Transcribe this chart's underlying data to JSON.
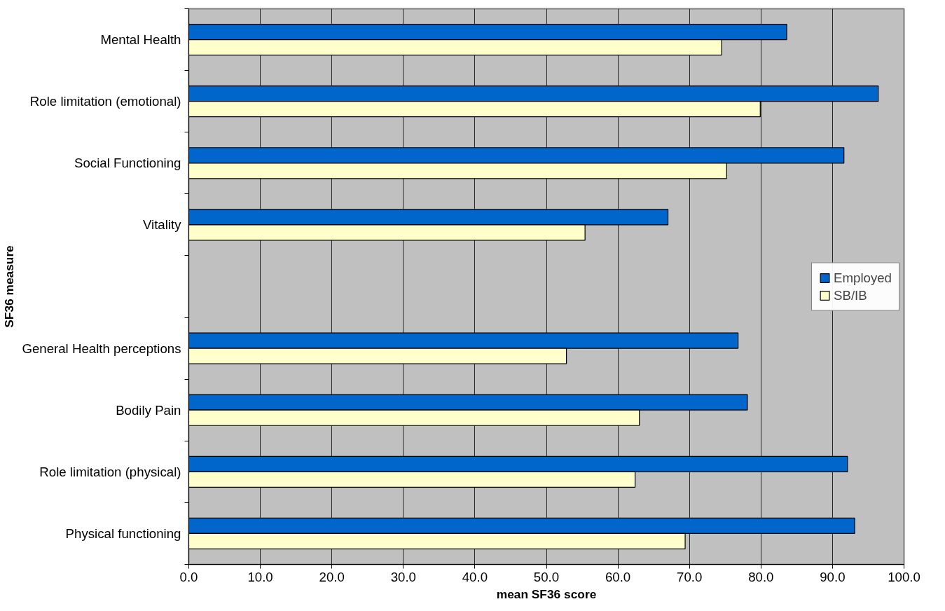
{
  "chart_data": {
    "type": "bar",
    "orientation": "horizontal",
    "xlabel": "mean SF36 score",
    "ylabel": "SF36 measure",
    "categories": [
      "Mental Health",
      "Role limitation (emotional)",
      "Social Functioning",
      "Vitality",
      null,
      "General Health perceptions",
      "Bodily Pain",
      "Role limitation (physical)",
      "Physical functioning"
    ],
    "series": [
      {
        "name": "Employed",
        "color": "#0066cc",
        "values": [
          83.6,
          96.4,
          91.6,
          67.0,
          null,
          76.8,
          78.1,
          92.1,
          93.1
        ]
      },
      {
        "name": "SB/IB",
        "color": "#ffffcc",
        "values": [
          74.5,
          79.9,
          75.2,
          55.4,
          null,
          52.8,
          63.0,
          62.4,
          69.4
        ]
      }
    ],
    "xlim": [
      0,
      100
    ],
    "xticks": [
      {
        "value": 0,
        "label": "0.0"
      },
      {
        "value": 10,
        "label": "10.0"
      },
      {
        "value": 20,
        "label": "20.0"
      },
      {
        "value": 30,
        "label": "30.0"
      },
      {
        "value": 40,
        "label": "40.0"
      },
      {
        "value": 50,
        "label": "50.0"
      },
      {
        "value": 60,
        "label": "60.0"
      },
      {
        "value": 70,
        "label": "70.0"
      },
      {
        "value": 80,
        "label": "80.0"
      },
      {
        "value": 90,
        "label": "90.0"
      },
      {
        "value": 100,
        "label": "100.0"
      }
    ],
    "grid": "x",
    "legend": "right"
  }
}
